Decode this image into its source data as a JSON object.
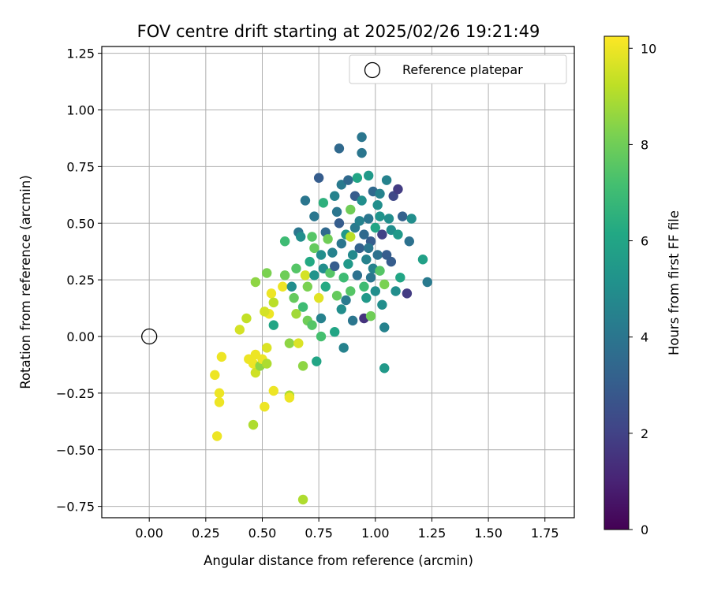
{
  "chart_data": {
    "type": "scatter",
    "title": "FOV centre drift starting at 2025/02/26 19:21:49",
    "xlabel": "Angular distance from reference (arcmin)",
    "ylabel": "Rotation from reference (arcmin)",
    "xlim": [
      -0.21,
      1.88
    ],
    "ylim": [
      -0.8,
      1.28
    ],
    "xticks": [
      "0.00",
      "0.25",
      "0.50",
      "0.75",
      "1.00",
      "1.25",
      "1.50",
      "1.75"
    ],
    "yticks": [
      "−0.75",
      "−0.50",
      "−0.25",
      "0.00",
      "0.25",
      "0.50",
      "0.75",
      "1.00",
      "1.25"
    ],
    "grid": true,
    "legend": {
      "position": "top-right",
      "entries": [
        "Reference platepar"
      ]
    },
    "reference_point": {
      "x": 0.0,
      "y": 0.0,
      "marker": "open-circle"
    },
    "colorbar": {
      "label": "Hours from first FF file",
      "colormap": "viridis",
      "range": [
        0,
        10.25
      ],
      "ticks": [
        "0",
        "2",
        "4",
        "6",
        "8",
        "10"
      ]
    },
    "points": [
      [
        0.3,
        -0.44,
        10.0
      ],
      [
        0.29,
        -0.17,
        10.0
      ],
      [
        0.31,
        -0.29,
        10.0
      ],
      [
        0.31,
        -0.25,
        10.0
      ],
      [
        0.32,
        -0.09,
        10.0
      ],
      [
        0.4,
        0.03,
        9.6
      ],
      [
        0.43,
        0.08,
        9.3
      ],
      [
        0.44,
        -0.1,
        10.0
      ],
      [
        0.46,
        -0.12,
        10.0
      ],
      [
        0.46,
        -0.39,
        9.0
      ],
      [
        0.47,
        -0.08,
        10.0
      ],
      [
        0.47,
        -0.16,
        9.5
      ],
      [
        0.49,
        -0.13,
        8.5
      ],
      [
        0.5,
        -0.1,
        10.0
      ],
      [
        0.51,
        -0.31,
        10.0
      ],
      [
        0.52,
        -0.05,
        9.7
      ],
      [
        0.52,
        -0.12,
        9.0
      ],
      [
        0.53,
        0.1,
        10.0
      ],
      [
        0.54,
        0.19,
        10.0
      ],
      [
        0.55,
        0.15,
        9.2
      ],
      [
        0.55,
        -0.24,
        10.0
      ],
      [
        0.51,
        0.11,
        9.6
      ],
      [
        0.47,
        0.24,
        8.5
      ],
      [
        0.52,
        0.28,
        8.2
      ],
      [
        0.55,
        0.05,
        6.0
      ],
      [
        0.59,
        0.22,
        10.0
      ],
      [
        0.6,
        0.27,
        8.0
      ],
      [
        0.6,
        0.42,
        7.0
      ],
      [
        0.62,
        -0.03,
        8.5
      ],
      [
        0.62,
        -0.26,
        9.0
      ],
      [
        0.62,
        -0.27,
        10.0
      ],
      [
        0.63,
        0.22,
        5.0
      ],
      [
        0.64,
        0.17,
        7.8
      ],
      [
        0.65,
        0.1,
        8.8
      ],
      [
        0.65,
        0.3,
        7.5
      ],
      [
        0.66,
        -0.03,
        9.7
      ],
      [
        0.66,
        0.46,
        4.0
      ],
      [
        0.67,
        0.44,
        5.0
      ],
      [
        0.68,
        -0.13,
        8.5
      ],
      [
        0.68,
        -0.72,
        9.0
      ],
      [
        0.68,
        0.13,
        7.0
      ],
      [
        0.69,
        0.6,
        4.0
      ],
      [
        0.69,
        0.27,
        9.6
      ],
      [
        0.7,
        0.07,
        8.0
      ],
      [
        0.7,
        0.22,
        8.2
      ],
      [
        0.71,
        0.33,
        6.2
      ],
      [
        0.72,
        0.44,
        7.5
      ],
      [
        0.72,
        0.05,
        7.5
      ],
      [
        0.73,
        0.39,
        7.8
      ],
      [
        0.73,
        0.53,
        4.0
      ],
      [
        0.73,
        0.27,
        5.2
      ],
      [
        0.74,
        -0.11,
        6.0
      ],
      [
        0.75,
        0.7,
        3.0
      ],
      [
        0.75,
        0.17,
        9.8
      ],
      [
        0.76,
        0.0,
        7.2
      ],
      [
        0.76,
        0.08,
        4.5
      ],
      [
        0.76,
        0.36,
        5.0
      ],
      [
        0.77,
        0.59,
        6.5
      ],
      [
        0.77,
        0.3,
        5.0
      ],
      [
        0.78,
        0.46,
        3.5
      ],
      [
        0.78,
        0.22,
        6.2
      ],
      [
        0.79,
        0.43,
        8.0
      ],
      [
        0.8,
        0.28,
        7.5
      ],
      [
        0.81,
        0.37,
        4.5
      ],
      [
        0.82,
        0.02,
        6.0
      ],
      [
        0.82,
        0.62,
        4.5
      ],
      [
        0.82,
        0.31,
        3.0
      ],
      [
        0.83,
        0.18,
        7.8
      ],
      [
        0.83,
        0.55,
        4.0
      ],
      [
        0.84,
        0.83,
        3.5
      ],
      [
        0.84,
        0.5,
        3.0
      ],
      [
        0.85,
        0.67,
        4.2
      ],
      [
        0.85,
        0.12,
        5.0
      ],
      [
        0.85,
        0.41,
        4.0
      ],
      [
        0.86,
        -0.05,
        4.5
      ],
      [
        0.86,
        0.26,
        7.0
      ],
      [
        0.87,
        0.16,
        4.2
      ],
      [
        0.87,
        0.45,
        5.5
      ],
      [
        0.88,
        0.69,
        3.5
      ],
      [
        0.88,
        0.32,
        5.5
      ],
      [
        0.89,
        0.56,
        8.0
      ],
      [
        0.89,
        0.44,
        9.2
      ],
      [
        0.89,
        0.2,
        7.5
      ],
      [
        0.9,
        0.07,
        4.0
      ],
      [
        0.9,
        0.36,
        4.8
      ],
      [
        0.91,
        0.62,
        3.0
      ],
      [
        0.91,
        0.48,
        4.2
      ],
      [
        0.92,
        0.7,
        6.0
      ],
      [
        0.92,
        0.27,
        3.8
      ],
      [
        0.93,
        0.51,
        4.5
      ],
      [
        0.93,
        0.39,
        3.2
      ],
      [
        0.94,
        0.88,
        4.0
      ],
      [
        0.94,
        0.81,
        4.0
      ],
      [
        0.94,
        0.6,
        5.0
      ],
      [
        0.95,
        0.45,
        3.5
      ],
      [
        0.95,
        0.08,
        1.5
      ],
      [
        0.95,
        0.22,
        7.0
      ],
      [
        0.96,
        0.34,
        4.5
      ],
      [
        0.96,
        0.17,
        5.5
      ],
      [
        0.97,
        0.71,
        5.5
      ],
      [
        0.97,
        0.52,
        4.0
      ],
      [
        0.98,
        0.42,
        3.0
      ],
      [
        0.98,
        0.26,
        4.0
      ],
      [
        0.99,
        0.3,
        4.5
      ],
      [
        0.99,
        0.64,
        3.5
      ],
      [
        1.0,
        0.48,
        6.0
      ],
      [
        1.0,
        0.2,
        5.0
      ],
      [
        1.01,
        0.58,
        5.0
      ],
      [
        1.01,
        0.36,
        3.8
      ],
      [
        1.02,
        0.53,
        5.2
      ],
      [
        1.02,
        0.29,
        7.5
      ],
      [
        1.03,
        0.45,
        2.0
      ],
      [
        1.03,
        0.14,
        5.0
      ],
      [
        1.04,
        0.23,
        8.2
      ],
      [
        1.04,
        0.04,
        4.5
      ],
      [
        1.04,
        -0.14,
        5.5
      ],
      [
        1.05,
        0.36,
        3.0
      ],
      [
        1.05,
        0.69,
        4.5
      ],
      [
        1.06,
        0.52,
        5.0
      ],
      [
        1.07,
        0.33,
        3.0
      ],
      [
        1.07,
        0.47,
        5.0
      ],
      [
        1.08,
        0.62,
        2.2
      ],
      [
        1.09,
        0.2,
        5.0
      ],
      [
        1.1,
        0.65,
        1.8
      ],
      [
        1.1,
        0.45,
        5.5
      ],
      [
        1.11,
        0.26,
        6.0
      ],
      [
        1.12,
        0.53,
        3.2
      ],
      [
        1.14,
        0.19,
        1.8
      ],
      [
        1.15,
        0.42,
        3.8
      ],
      [
        1.16,
        0.52,
        5.0
      ],
      [
        1.21,
        0.34,
        5.8
      ],
      [
        1.23,
        0.24,
        4.2
      ],
      [
        1.02,
        0.63,
        4.5
      ],
      [
        0.98,
        0.09,
        8.0
      ],
      [
        0.97,
        0.39,
        4.0
      ]
    ]
  }
}
